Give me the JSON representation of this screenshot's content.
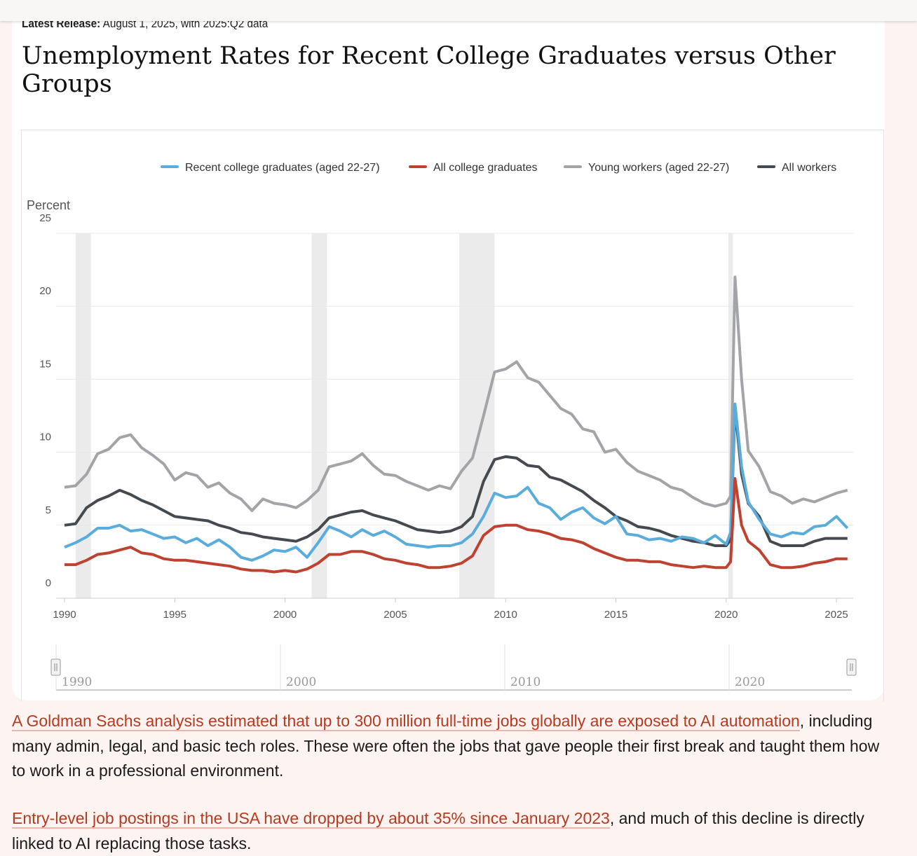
{
  "header": {
    "release_label": "Latest Release:",
    "release_text": "August 1, 2025, with 2025:Q2 data"
  },
  "title": "Unemployment Rates for Recent College Graduates versus Other Groups",
  "chart_data": {
    "type": "line",
    "title": "Unemployment Rates for Recent College Graduates versus Other Groups",
    "ylabel": "Percent",
    "xlabel": "",
    "ylim": [
      0,
      25
    ],
    "xlim": [
      1990,
      2025.6
    ],
    "yticks": [
      "0",
      "5",
      "10",
      "15",
      "20",
      "25"
    ],
    "xticks": [
      "1990",
      "1995",
      "2000",
      "2005",
      "2010",
      "2015",
      "2020",
      "2025"
    ],
    "navigator_ticks": [
      "1990",
      "2000",
      "2010",
      "2020"
    ],
    "grid": true,
    "legend_position": "top",
    "recessions": [
      [
        1990.5,
        1991.2
      ],
      [
        2001.2,
        2001.9
      ],
      [
        2007.9,
        2009.5
      ],
      [
        2020.1,
        2020.3
      ]
    ],
    "x": [
      1990,
      1990.5,
      1991,
      1991.5,
      1992,
      1992.5,
      1993,
      1993.5,
      1994,
      1994.5,
      1995,
      1995.5,
      1996,
      1996.5,
      1997,
      1997.5,
      1998,
      1998.5,
      1999,
      1999.5,
      2000,
      2000.5,
      2001,
      2001.5,
      2002,
      2002.5,
      2003,
      2003.5,
      2004,
      2004.5,
      2005,
      2005.5,
      2006,
      2006.5,
      2007,
      2007.5,
      2008,
      2008.5,
      2009,
      2009.5,
      2010,
      2010.5,
      2011,
      2011.5,
      2012,
      2012.5,
      2013,
      2013.5,
      2014,
      2014.5,
      2015,
      2015.5,
      2016,
      2016.5,
      2017,
      2017.5,
      2018,
      2018.5,
      2019,
      2019.5,
      2020,
      2020.2,
      2020.4,
      2020.7,
      2021,
      2021.5,
      2022,
      2022.5,
      2023,
      2023.5,
      2024,
      2024.5,
      2025,
      2025.5
    ],
    "series": [
      {
        "name": "Young workers (aged 22-27)",
        "color": "#a3a4a8",
        "values": [
          7.6,
          7.7,
          8.5,
          9.9,
          10.2,
          11.0,
          11.2,
          10.3,
          9.8,
          9.2,
          8.1,
          8.6,
          8.4,
          7.6,
          7.9,
          7.2,
          6.8,
          6.0,
          6.8,
          6.5,
          6.4,
          6.2,
          6.7,
          7.4,
          9.0,
          9.2,
          9.4,
          9.9,
          9.1,
          8.5,
          8.4,
          8.0,
          7.7,
          7.4,
          7.7,
          7.5,
          8.7,
          9.6,
          12.5,
          15.5,
          15.7,
          16.2,
          15.1,
          14.8,
          13.9,
          13.0,
          12.6,
          11.6,
          11.4,
          10.0,
          10.2,
          9.3,
          8.7,
          8.4,
          8.1,
          7.6,
          7.4,
          6.9,
          6.5,
          6.3,
          6.5,
          7.0,
          22.0,
          15.0,
          10.1,
          9.0,
          7.3,
          7.0,
          6.5,
          6.8,
          6.6,
          6.9,
          7.2,
          7.4
        ]
      },
      {
        "name": "All workers",
        "color": "#454a50",
        "values": [
          5.0,
          5.1,
          6.2,
          6.7,
          7.0,
          7.4,
          7.1,
          6.7,
          6.4,
          6.0,
          5.6,
          5.5,
          5.4,
          5.3,
          5.0,
          4.8,
          4.5,
          4.4,
          4.2,
          4.1,
          4.0,
          3.9,
          4.2,
          4.7,
          5.5,
          5.7,
          5.9,
          6.0,
          5.7,
          5.5,
          5.3,
          5.0,
          4.7,
          4.6,
          4.5,
          4.6,
          4.9,
          5.6,
          8.0,
          9.5,
          9.7,
          9.6,
          9.1,
          9.0,
          8.3,
          8.1,
          7.7,
          7.3,
          6.7,
          6.2,
          5.6,
          5.3,
          4.9,
          4.8,
          4.6,
          4.3,
          4.1,
          3.9,
          3.8,
          3.6,
          3.6,
          4.0,
          13.0,
          8.5,
          6.5,
          5.6,
          3.9,
          3.6,
          3.6,
          3.6,
          3.9,
          4.1,
          4.1,
          4.1
        ]
      },
      {
        "name": "Recent college graduates (aged 22-27)",
        "color": "#5aacdd",
        "values": [
          3.5,
          3.8,
          4.2,
          4.8,
          4.8,
          5.0,
          4.6,
          4.7,
          4.4,
          4.1,
          4.2,
          3.8,
          4.1,
          3.6,
          4.0,
          3.5,
          2.8,
          2.6,
          2.9,
          3.3,
          3.2,
          3.5,
          2.8,
          3.8,
          4.9,
          4.6,
          4.2,
          4.7,
          4.3,
          4.6,
          4.2,
          3.7,
          3.6,
          3.5,
          3.6,
          3.6,
          3.8,
          4.4,
          5.6,
          7.2,
          6.9,
          7.0,
          7.6,
          6.5,
          6.2,
          5.4,
          5.9,
          6.2,
          5.5,
          5.1,
          5.6,
          4.4,
          4.3,
          4.0,
          4.1,
          3.9,
          4.2,
          4.1,
          3.8,
          4.3,
          3.7,
          4.5,
          13.3,
          9.0,
          6.6,
          5.4,
          4.4,
          4.2,
          4.5,
          4.4,
          4.9,
          5.0,
          5.6,
          4.8
        ]
      },
      {
        "name": "All college graduates",
        "color": "#bf4231",
        "values": [
          2.3,
          2.3,
          2.6,
          3.0,
          3.1,
          3.3,
          3.5,
          3.1,
          3.0,
          2.7,
          2.6,
          2.6,
          2.5,
          2.4,
          2.3,
          2.2,
          2.0,
          1.9,
          1.9,
          1.8,
          1.9,
          1.8,
          2.0,
          2.4,
          3.0,
          3.0,
          3.2,
          3.2,
          3.0,
          2.7,
          2.6,
          2.4,
          2.3,
          2.1,
          2.1,
          2.2,
          2.4,
          2.9,
          4.3,
          4.9,
          5.0,
          5.0,
          4.7,
          4.6,
          4.4,
          4.1,
          4.0,
          3.8,
          3.4,
          3.1,
          2.8,
          2.6,
          2.6,
          2.5,
          2.5,
          2.3,
          2.2,
          2.1,
          2.2,
          2.1,
          2.1,
          2.5,
          8.2,
          5.0,
          3.9,
          3.3,
          2.3,
          2.1,
          2.1,
          2.2,
          2.4,
          2.5,
          2.7,
          2.7
        ]
      }
    ],
    "legend": [
      {
        "name": "Recent college graduates (aged 22-27)",
        "color": "#5aacdd"
      },
      {
        "name": "All college graduates",
        "color": "#bf4231"
      },
      {
        "name": "Young workers (aged 22-27)",
        "color": "#a3a4a8"
      },
      {
        "name": "All workers",
        "color": "#454a50"
      }
    ]
  },
  "paragraphs": [
    {
      "link": "A Goldman Sachs analysis estimated that up to 300 million full-time jobs globally are exposed to AI automation",
      "text": ", including many admin, legal, and basic tech roles. These were often the jobs that gave people their first break and taught them how to work in a professional environment."
    },
    {
      "link": "Entry-level job postings in the USA have dropped by about 35% since January 2023",
      "text": ", and much of this decline is directly linked to AI replacing those tasks."
    }
  ]
}
